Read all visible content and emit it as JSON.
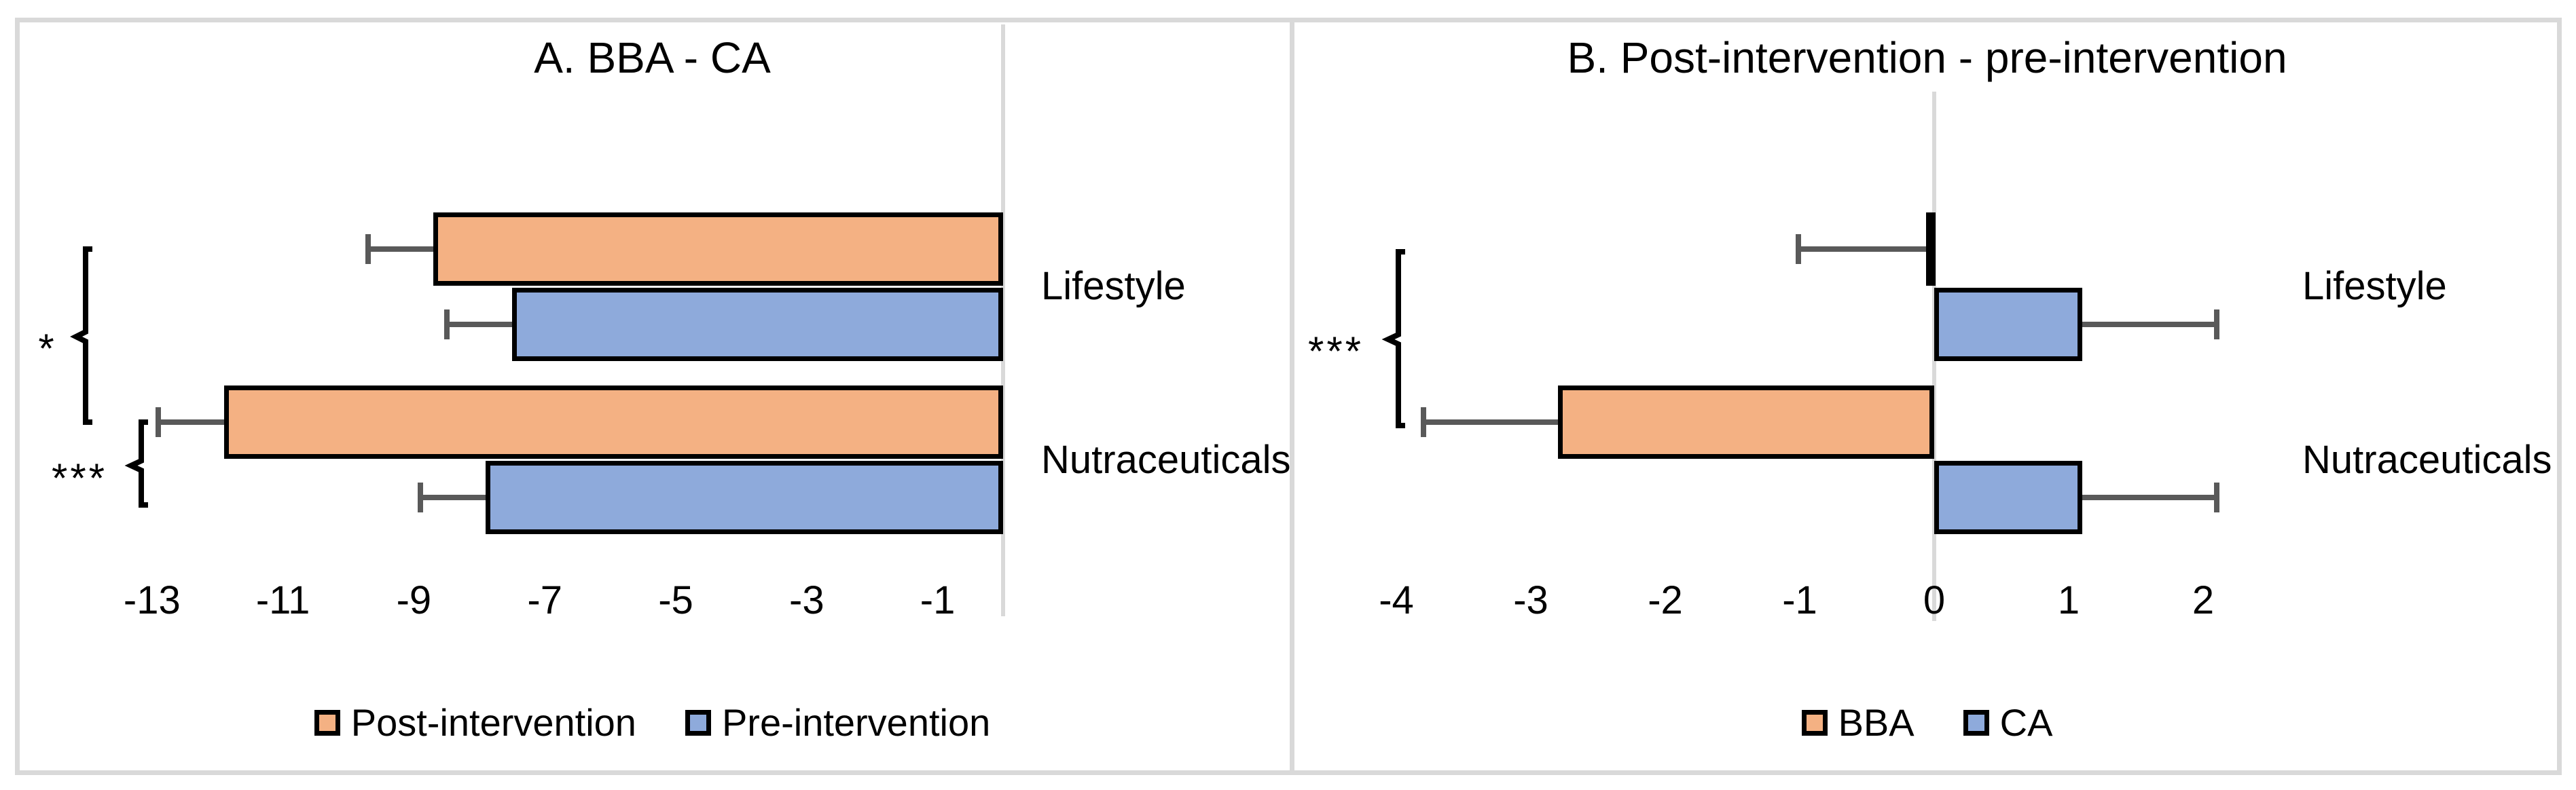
{
  "colors": {
    "series_orange": "#F4B183",
    "series_blue": "#8EAADB",
    "bar_border": "#000000",
    "error_bar": "#595959",
    "axis_line": "#D9D9D9",
    "panel_border": "#D9D9D9"
  },
  "chart_data": [
    {
      "id": "A",
      "type": "bar",
      "orientation": "horizontal",
      "title": "A. BBA - CA",
      "categories": [
        "Lifestyle",
        "Nutraceuticals"
      ],
      "series": [
        {
          "name": "Post-intervention",
          "color": "#F4B183",
          "values": [
            -8.7,
            -11.9
          ],
          "error": [
            1.0,
            1.0
          ]
        },
        {
          "name": "Pre-intervention",
          "color": "#8EAADB",
          "values": [
            -7.5,
            -7.9
          ],
          "error": [
            1.0,
            1.0
          ]
        }
      ],
      "xlim": [
        -14,
        0
      ],
      "xticks": [
        -13,
        -11,
        -9,
        -7,
        -5,
        -3,
        -1
      ],
      "grid": false,
      "legend_position": "bottom",
      "significance": [
        {
          "label": "*",
          "compares": "Post-intervention: Lifestyle vs Nutraceuticals"
        },
        {
          "label": "***",
          "compares": "Nutraceuticals: Post-intervention vs Pre-intervention"
        }
      ]
    },
    {
      "id": "B",
      "type": "bar",
      "orientation": "horizontal",
      "title": "B. Post-intervention - pre-intervention",
      "categories": [
        "Lifestyle",
        "Nutraceuticals"
      ],
      "series": [
        {
          "name": "BBA",
          "color": "#F4B183",
          "values": [
            -0.05,
            -2.8
          ],
          "error": [
            0.95,
            1.0
          ]
        },
        {
          "name": "CA",
          "color": "#8EAADB",
          "values": [
            1.1,
            1.1
          ],
          "error": [
            1.0,
            1.0
          ]
        }
      ],
      "xlim": [
        -4.5,
        2.5
      ],
      "xticks": [
        -4,
        -3,
        -2,
        -1,
        0,
        1,
        2
      ],
      "grid": false,
      "legend_position": "bottom",
      "significance": [
        {
          "label": "***",
          "compares": "BBA: Lifestyle vs Nutraceuticals"
        }
      ]
    }
  ]
}
